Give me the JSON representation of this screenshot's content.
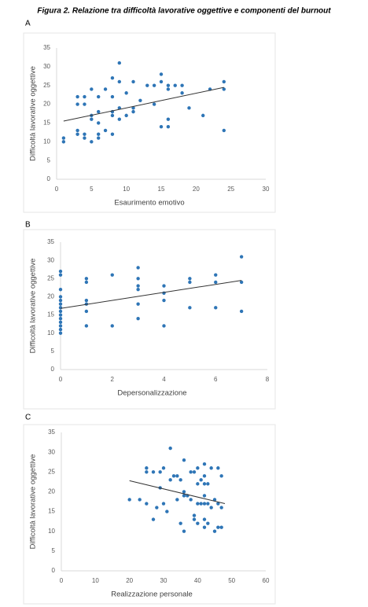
{
  "figure_title": "Figura 2. Relazione tra difficoltà lavorative oggettive e componenti del burnout",
  "chart_data": [
    {
      "type": "scatter",
      "panel": "A",
      "x_label": "Esaurimento emotivo",
      "y_label": "Difficoltà lavorative oggettive",
      "color": "#2e75b6",
      "x": [
        1,
        1,
        3,
        3,
        3,
        3,
        4,
        4,
        4,
        4,
        5,
        5,
        5,
        5,
        6,
        6,
        6,
        6,
        6,
        7,
        7,
        8,
        8,
        8,
        8,
        8,
        9,
        9,
        9,
        9,
        10,
        10,
        11,
        11,
        11,
        12,
        13,
        14,
        14,
        15,
        15,
        15,
        16,
        16,
        16,
        16,
        17,
        18,
        18,
        19,
        21,
        22,
        24,
        24,
        24
      ],
      "values": [
        11,
        10,
        22,
        20,
        13,
        12,
        22,
        20,
        12,
        11,
        24,
        17,
        16,
        10,
        22,
        18,
        15,
        12,
        11,
        24,
        13,
        27,
        22,
        18,
        17,
        12,
        31,
        26,
        19,
        16,
        23,
        17,
        26,
        19,
        18,
        21,
        25,
        25,
        20,
        28,
        26,
        14,
        25,
        24,
        16,
        14,
        25,
        25,
        23,
        19,
        17,
        24,
        26,
        24,
        13
      ],
      "trendline": {
        "x": [
          1,
          24
        ],
        "y": [
          15.5,
          24.5
        ]
      },
      "xlim": [
        0,
        30
      ],
      "xticks": [
        0,
        5,
        10,
        15,
        20,
        25,
        30
      ],
      "ylim": [
        0,
        35
      ],
      "yticks": [
        0,
        5,
        10,
        15,
        20,
        25,
        30,
        35
      ]
    },
    {
      "type": "scatter",
      "panel": "B",
      "x_label": "Depersonalizzazione",
      "y_label": "Difficoltà lavorative oggettive",
      "color": "#2e75b6",
      "x": [
        0,
        0,
        0,
        0,
        0,
        0,
        0,
        0,
        0,
        0,
        0,
        0,
        0,
        0,
        1,
        1,
        1,
        1,
        1,
        1,
        2,
        2,
        3,
        3,
        3,
        3,
        3,
        3,
        4,
        4,
        4,
        4,
        5,
        5,
        5,
        6,
        6,
        6,
        7,
        7,
        7
      ],
      "values": [
        27,
        26,
        22,
        20,
        19,
        18,
        17,
        16,
        15,
        14,
        13,
        12,
        11,
        10,
        25,
        24,
        19,
        18,
        16,
        12,
        26,
        12,
        28,
        25,
        23,
        22,
        18,
        14,
        23,
        21,
        19,
        12,
        25,
        24,
        17,
        26,
        24,
        17,
        31,
        24,
        16
      ],
      "trendline": {
        "x": [
          0,
          7
        ],
        "y": [
          16.8,
          24.5
        ]
      },
      "xlim": [
        0,
        8
      ],
      "xticks": [
        0,
        2,
        4,
        6,
        8
      ],
      "ylim": [
        0,
        35
      ],
      "yticks": [
        0,
        5,
        10,
        15,
        20,
        25,
        30,
        35
      ]
    },
    {
      "type": "scatter",
      "panel": "C",
      "x_label": "Realizzazione personale",
      "y_label": "Difficoltà lavorative oggettive",
      "color": "#2e75b6",
      "x": [
        20,
        23,
        25,
        25,
        25,
        27,
        27,
        28,
        29,
        29,
        30,
        30,
        31,
        32,
        32,
        33,
        34,
        34,
        35,
        35,
        36,
        36,
        36,
        36,
        37,
        38,
        38,
        39,
        39,
        39,
        40,
        40,
        40,
        40,
        41,
        41,
        42,
        42,
        42,
        42,
        42,
        42,
        42,
        43,
        43,
        43,
        44,
        44,
        45,
        45,
        46,
        46,
        46,
        47,
        47,
        47
      ],
      "values": [
        18,
        18,
        26,
        25,
        17,
        25,
        13,
        16,
        25,
        21,
        26,
        17,
        15,
        31,
        23,
        24,
        24,
        18,
        23,
        12,
        28,
        20,
        19,
        10,
        19,
        25,
        18,
        25,
        14,
        13,
        26,
        22,
        17,
        12,
        23,
        17,
        27,
        24,
        22,
        19,
        17,
        13,
        11,
        22,
        17,
        12,
        26,
        16,
        18,
        10,
        26,
        17,
        11,
        24,
        16,
        11
      ],
      "trendline": {
        "x": [
          20,
          48
        ],
        "y": [
          22.8,
          17
        ]
      },
      "xlim": [
        0,
        60
      ],
      "xticks": [
        0,
        10,
        20,
        30,
        40,
        50,
        60
      ],
      "ylim": [
        0,
        35
      ],
      "yticks": [
        0,
        5,
        10,
        15,
        20,
        25,
        30,
        35
      ]
    }
  ]
}
